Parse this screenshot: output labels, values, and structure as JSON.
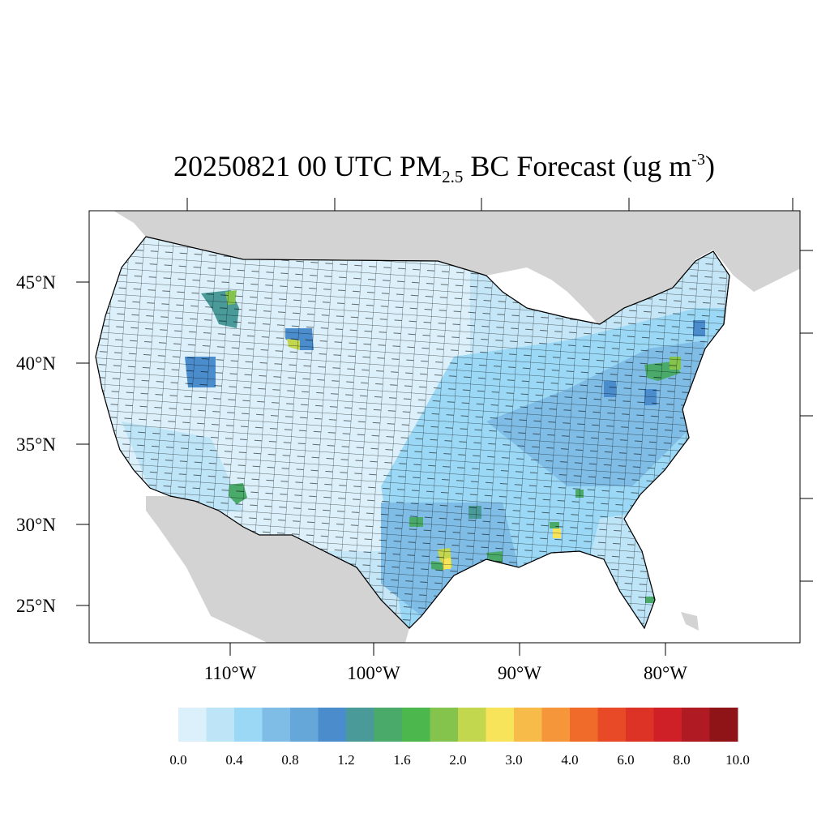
{
  "title": {
    "main": "20250821 00 UTC PM",
    "sub": "2.5",
    "mid": " BC Forecast (ug m",
    "sup": "-3",
    "end": ")"
  },
  "map": {
    "land_color": "#d3d3d3",
    "water_color": "#ffffff",
    "county_line_color": "#000000",
    "lat_labels": [
      "45°N",
      "40°N",
      "35°N",
      "30°N",
      "25°N"
    ],
    "lon_labels": [
      "110°W",
      "100°W",
      "90°W",
      "80°W"
    ],
    "hotspots": [
      {
        "region": "southwest Montana",
        "level": "1.2-1.6"
      },
      {
        "region": "northeast Wyoming",
        "level": "2.0-3.0"
      },
      {
        "region": "northeast Utah",
        "level": "1.0-1.2"
      },
      {
        "region": "central Arizona",
        "level": "1.4-1.6"
      },
      {
        "region": "Houston, Texas",
        "level": "2.0-3.0"
      },
      {
        "region": "south Louisiana",
        "level": "1.4-1.8"
      },
      {
        "region": "Alabama",
        "level": "2.0-3.0"
      },
      {
        "region": "Pennsylvania",
        "level": "1.6-2.0"
      }
    ]
  },
  "colorbar": {
    "colors": [
      "#dbf0fa",
      "#bde4f7",
      "#9ad8f5",
      "#7fbde6",
      "#66a7da",
      "#4a8ccc",
      "#4a9a9a",
      "#4aaa6a",
      "#4cb74c",
      "#84c44c",
      "#c2d64e",
      "#f7e45a",
      "#f7bb4a",
      "#f5963a",
      "#f06a2a",
      "#e84a28",
      "#dd3226",
      "#cf2028",
      "#b01a22",
      "#8e1418"
    ],
    "labels": [
      "0.0",
      "0.4",
      "0.8",
      "1.2",
      "1.6",
      "2.0",
      "3.0",
      "4.0",
      "6.0",
      "8.0",
      "10.0"
    ]
  }
}
